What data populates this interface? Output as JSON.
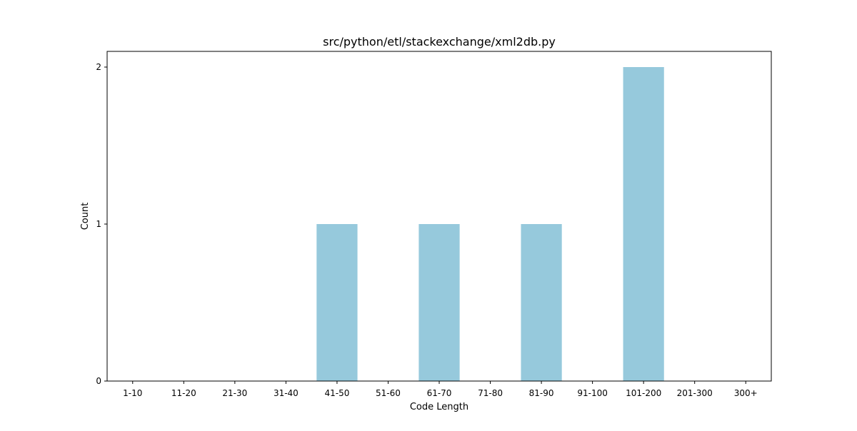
{
  "chart_data": {
    "type": "bar",
    "title": "src/python/etl/stackexchange/xml2db.py",
    "xlabel": "Code Length",
    "ylabel": "Count",
    "categories": [
      "1-10",
      "11-20",
      "21-30",
      "31-40",
      "41-50",
      "51-60",
      "61-70",
      "71-80",
      "81-90",
      "91-100",
      "101-200",
      "201-300",
      "300+"
    ],
    "values": [
      0,
      0,
      0,
      0,
      1,
      0,
      1,
      0,
      1,
      0,
      2,
      0,
      0
    ],
    "ylim": [
      0,
      2.1
    ],
    "yticks": [
      0,
      1,
      2
    ],
    "grid": false,
    "bar_color": "#96c9dc"
  }
}
